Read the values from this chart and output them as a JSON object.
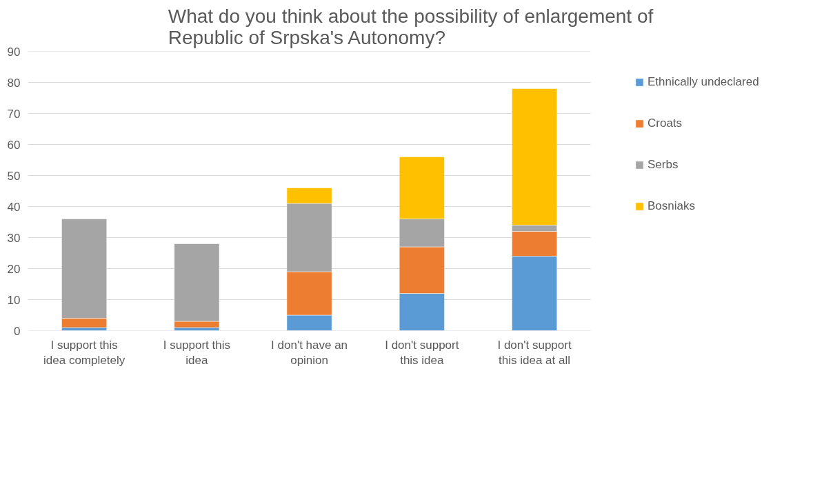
{
  "chart_data": {
    "type": "bar",
    "stacked": true,
    "title": "What do you think about the possibility of enlargement of\nRepublic of Srpska's Autonomy?",
    "categories": [
      "I support this\nidea completely",
      "I support this\nidea",
      "I don't have an\nopinion",
      "I don't support\nthis idea",
      "I don't support\nthis idea at all"
    ],
    "series": [
      {
        "name": "Ethnically undeclared",
        "color": "#5b9bd5",
        "values": [
          1,
          1,
          5,
          12,
          24
        ]
      },
      {
        "name": "Croats",
        "color": "#ed7d31",
        "values": [
          3,
          2,
          14,
          15,
          8
        ]
      },
      {
        "name": "Serbs",
        "color": "#a5a5a5",
        "values": [
          32,
          25,
          22,
          9,
          2
        ]
      },
      {
        "name": "Bosniaks",
        "color": "#ffc000",
        "values": [
          null,
          null,
          5,
          20,
          44
        ]
      }
    ],
    "ylim": [
      0,
      90
    ],
    "yticks": [
      0,
      10,
      20,
      30,
      40,
      50,
      60,
      70,
      80,
      90
    ],
    "grid": "y",
    "legend": "right"
  }
}
